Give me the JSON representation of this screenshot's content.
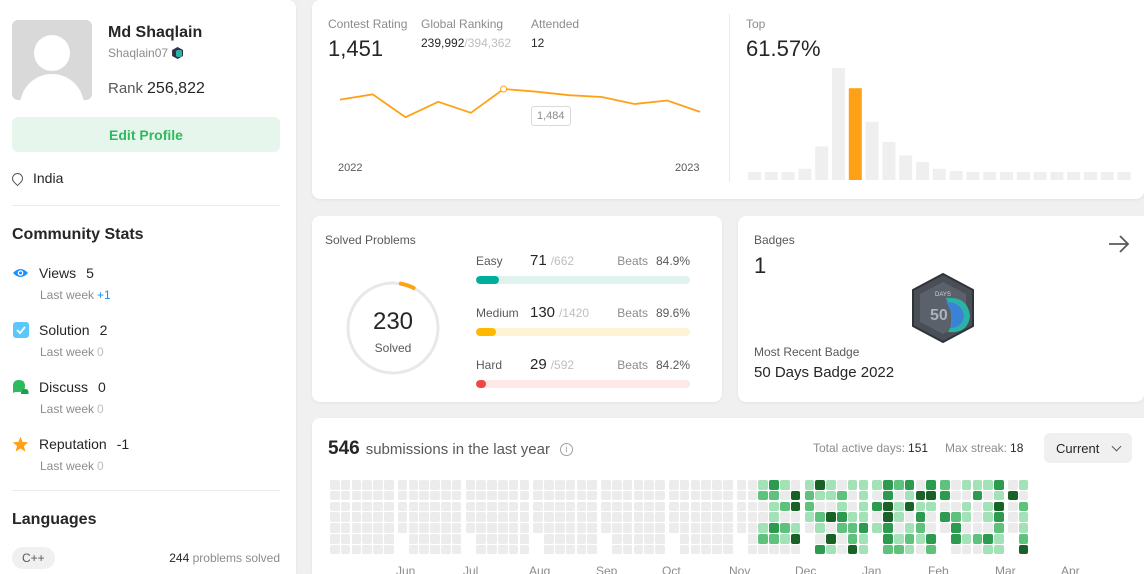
{
  "profile": {
    "name": "Md Shaqlain",
    "username": "Shaqlain07",
    "rank_label": "Rank",
    "rank_value": "256,822",
    "edit_label": "Edit Profile",
    "location": "India"
  },
  "community": {
    "title": "Community Stats",
    "items": [
      {
        "label": "Views",
        "value": "5",
        "sub_label": "Last week",
        "sub_value": "+1",
        "color": "#1890ff"
      },
      {
        "label": "Solution",
        "value": "2",
        "sub_label": "Last week",
        "sub_value": "0",
        "color": "#5ac8fa"
      },
      {
        "label": "Discuss",
        "value": "0",
        "sub_label": "Last week",
        "sub_value": "0",
        "color": "#2cbb5d"
      },
      {
        "label": "Reputation",
        "value": "-1",
        "sub_label": "Last week",
        "sub_value": "0",
        "color": "#ffa116"
      }
    ]
  },
  "languages": {
    "title": "Languages",
    "items": [
      {
        "name": "C++",
        "count": "244",
        "suffix": "problems solved"
      }
    ]
  },
  "contest": {
    "rating_label": "Contest Rating",
    "rating_value": "1,451",
    "global_label": "Global Ranking",
    "global_value": "239,992",
    "global_total": "/394,362",
    "attended_label": "Attended",
    "attended_value": "12",
    "tooltip": "1,484",
    "x_start": "2022",
    "x_end": "2023",
    "line_points": [
      1460,
      1472,
      1420,
      1455,
      1430,
      1484,
      1478,
      1470,
      1466,
      1450,
      1458,
      1432
    ],
    "line_color": "#ffa116",
    "top_label": "Top",
    "top_value": "61.57%",
    "histogram": [
      4,
      4,
      6,
      10,
      30,
      100,
      82,
      52,
      34,
      22,
      16,
      10,
      8,
      6,
      6,
      6,
      6,
      6,
      6,
      6,
      6,
      6,
      6,
      6,
      6,
      6
    ],
    "histogram_highlight_index": 6
  },
  "solved": {
    "title": "Solved Problems",
    "total": "230",
    "total_label": "Solved",
    "ring_fraction": 0.048,
    "rows": [
      {
        "name": "Easy",
        "count": "71",
        "total": "/662",
        "beats_label": "Beats",
        "beats": "84.9%",
        "fraction": 0.107,
        "fill": "#00af9b",
        "track": "#e0f2ee"
      },
      {
        "name": "Medium",
        "count": "130",
        "total": "/1420",
        "beats_label": "Beats",
        "beats": "89.6%",
        "fraction": 0.092,
        "fill": "#ffb800",
        "track": "#fff3d6"
      },
      {
        "name": "Hard",
        "count": "29",
        "total": "/592",
        "beats_label": "Beats",
        "beats": "84.2%",
        "fraction": 0.049,
        "fill": "#ef4743",
        "track": "#fde8e8"
      }
    ]
  },
  "badges": {
    "title": "Badges",
    "count": "1",
    "recent_label": "Most Recent Badge",
    "recent_name": "50 Days Badge 2022",
    "badge_text": "DAYS",
    "badge_number": "50"
  },
  "submissions": {
    "count": "546",
    "label": "submissions in the last year",
    "active_label": "Total active days:",
    "active_value": "151",
    "streak_label": "Max streak:",
    "streak_value": "18",
    "dropdown": "Current",
    "months": [
      "Jun",
      "Jul",
      "Aug",
      "Sep",
      "Oct",
      "Nov",
      "Dec",
      "Jan",
      "Feb",
      "Mar",
      "Apr"
    ],
    "heat_colors": [
      "#ebebeb",
      "#a2e2b6",
      "#5fc27c",
      "#2c9a4f",
      "#196127"
    ]
  }
}
